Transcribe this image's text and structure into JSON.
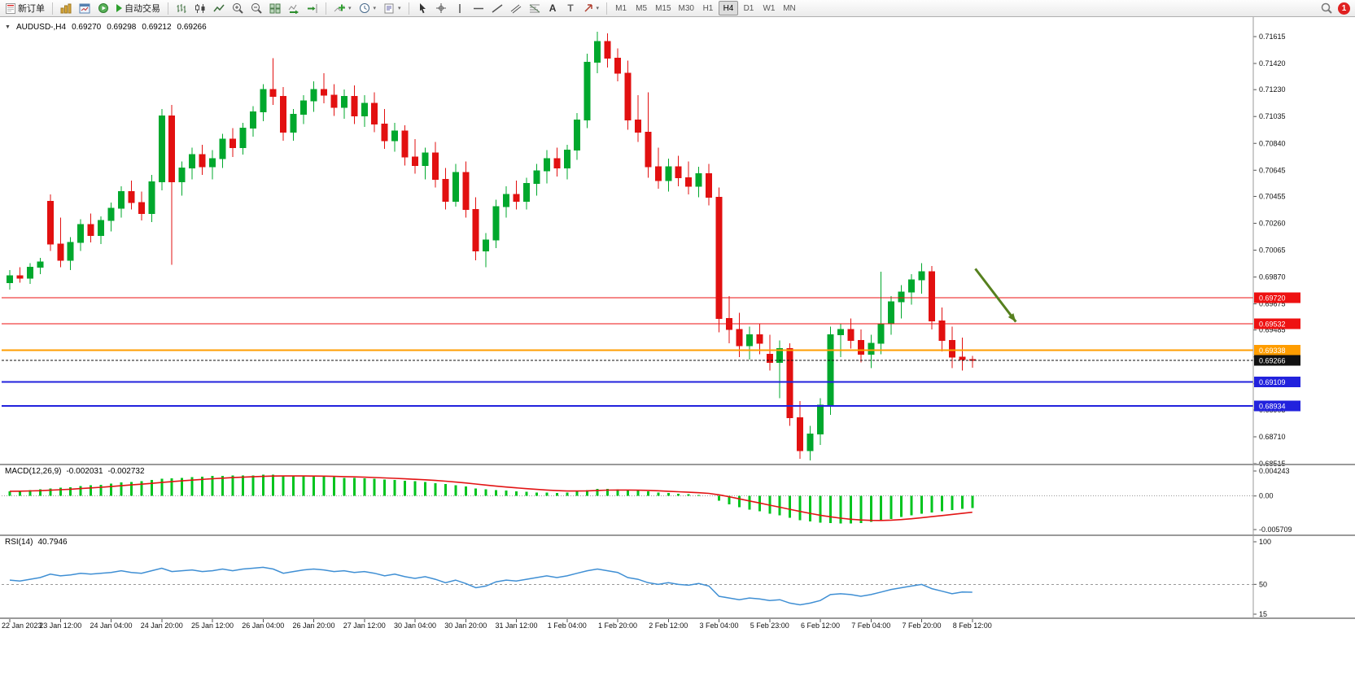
{
  "toolbar": {
    "new_order_label": "新订单",
    "autotrading_label": "自动交易",
    "timeframes": [
      "M1",
      "M5",
      "M15",
      "M30",
      "H1",
      "H4",
      "D1",
      "W1",
      "MN"
    ],
    "active_timeframe": "H4",
    "notification_count": "1",
    "icon_names": [
      "new-order",
      "chart-window",
      "market-watch",
      "autotrading-status",
      "autotrading-play",
      "bar-chart",
      "candlestick-chart",
      "line-chart",
      "zoom-in",
      "zoom-out",
      "tile-windows",
      "auto-scroll",
      "chart-shift",
      "indicators",
      "periods",
      "templates",
      "cursor",
      "crosshair",
      "vertical-line",
      "horizontal-line",
      "trendline",
      "equidistant-channel",
      "fibonacci",
      "text",
      "text-label",
      "arrows",
      "search",
      "notification"
    ]
  },
  "chart_header": {
    "symbol_period": "AUDUSD-,H4",
    "open": "0.69270",
    "high": "0.69298",
    "low": "0.69212",
    "close": "0.69266"
  },
  "chart_data": {
    "type": "candlestick",
    "title": "AUDUSD-,H4",
    "label_every_n_candles": 5,
    "time_labels": [
      "22 Jan 2023",
      "23 Jan 12:00",
      "24 Jan 04:00",
      "24 Jan 20:00",
      "25 Jan 12:00",
      "26 Jan 04:00",
      "26 Jan 20:00",
      "27 Jan 12:00",
      "30 Jan 04:00",
      "30 Jan 20:00",
      "31 Jan 12:00",
      "1 Feb 04:00",
      "1 Feb 20:00",
      "2 Feb 12:00",
      "3 Feb 04:00",
      "5 Feb 23:00",
      "6 Feb 12:00",
      "7 Feb 04:00",
      "7 Feb 20:00",
      "8 Feb 12:00"
    ],
    "price_axis_labels": [
      "0.71615",
      "0.71420",
      "0.71230",
      "0.71035",
      "0.70840",
      "0.70645",
      "0.70455",
      "0.70260",
      "0.70065",
      "0.69870",
      "0.69675",
      "0.69485",
      "0.69290",
      "0.69095",
      "0.68905",
      "0.68710",
      "0.68515"
    ],
    "candle_colors": {
      "up": "#00a82d",
      "down": "#e21010"
    },
    "ohlc": [
      [
        0.6983,
        0.6992,
        0.6978,
        0.6988
      ],
      [
        0.6988,
        0.6994,
        0.6983,
        0.6986
      ],
      [
        0.6986,
        0.6997,
        0.6982,
        0.6994
      ],
      [
        0.6994,
        0.7001,
        0.6989,
        0.6998
      ],
      [
        0.7042,
        0.7047,
        0.7006,
        0.7011
      ],
      [
        0.7011,
        0.703,
        0.6994,
        0.6999
      ],
      [
        0.6999,
        0.7016,
        0.6992,
        0.7012
      ],
      [
        0.7012,
        0.7029,
        0.7006,
        0.7025
      ],
      [
        0.7025,
        0.7033,
        0.7012,
        0.7017
      ],
      [
        0.7017,
        0.7031,
        0.7011,
        0.7028
      ],
      [
        0.7028,
        0.7041,
        0.702,
        0.7037
      ],
      [
        0.7037,
        0.7053,
        0.703,
        0.7049
      ],
      [
        0.7049,
        0.7057,
        0.7036,
        0.7041
      ],
      [
        0.7041,
        0.7049,
        0.7028,
        0.7033
      ],
      [
        0.7033,
        0.7061,
        0.7027,
        0.7056
      ],
      [
        0.7056,
        0.7109,
        0.705,
        0.7104
      ],
      [
        0.7104,
        0.7112,
        0.6996,
        0.7056
      ],
      [
        0.7056,
        0.7071,
        0.7046,
        0.7066
      ],
      [
        0.7066,
        0.7081,
        0.7058,
        0.7076
      ],
      [
        0.7076,
        0.7083,
        0.7061,
        0.7067
      ],
      [
        0.7067,
        0.7079,
        0.7058,
        0.7073
      ],
      [
        0.7073,
        0.7091,
        0.7066,
        0.7087
      ],
      [
        0.7087,
        0.7095,
        0.7074,
        0.7081
      ],
      [
        0.7081,
        0.7099,
        0.7076,
        0.7095
      ],
      [
        0.7095,
        0.7111,
        0.7089,
        0.7107
      ],
      [
        0.7107,
        0.7127,
        0.71,
        0.7123
      ],
      [
        0.7123,
        0.7146,
        0.7112,
        0.7118
      ],
      [
        0.7118,
        0.7125,
        0.7086,
        0.7092
      ],
      [
        0.7092,
        0.7109,
        0.7086,
        0.7105
      ],
      [
        0.7105,
        0.7119,
        0.7098,
        0.7115
      ],
      [
        0.7115,
        0.7129,
        0.7107,
        0.7123
      ],
      [
        0.7123,
        0.7135,
        0.7113,
        0.7119
      ],
      [
        0.7119,
        0.7127,
        0.7104,
        0.711
      ],
      [
        0.711,
        0.7123,
        0.7102,
        0.7118
      ],
      [
        0.7118,
        0.7126,
        0.7098,
        0.7104
      ],
      [
        0.7104,
        0.7119,
        0.7096,
        0.7113
      ],
      [
        0.7113,
        0.7121,
        0.7092,
        0.7098
      ],
      [
        0.7098,
        0.7109,
        0.708,
        0.7086
      ],
      [
        0.7086,
        0.7099,
        0.7078,
        0.7093
      ],
      [
        0.7093,
        0.7097,
        0.7068,
        0.7074
      ],
      [
        0.7074,
        0.7087,
        0.7062,
        0.7068
      ],
      [
        0.7068,
        0.7081,
        0.7058,
        0.7077
      ],
      [
        0.7077,
        0.7085,
        0.7052,
        0.7058
      ],
      [
        0.7058,
        0.7066,
        0.7036,
        0.7042
      ],
      [
        0.7042,
        0.7069,
        0.7038,
        0.7063
      ],
      [
        0.7063,
        0.7071,
        0.703,
        0.7036
      ],
      [
        0.7036,
        0.7045,
        0.6999,
        0.7006
      ],
      [
        0.7006,
        0.7019,
        0.6994,
        0.7014
      ],
      [
        0.7014,
        0.7043,
        0.7008,
        0.7038
      ],
      [
        0.7038,
        0.7053,
        0.703,
        0.7047
      ],
      [
        0.7047,
        0.7057,
        0.7036,
        0.7042
      ],
      [
        0.7042,
        0.7059,
        0.7036,
        0.7055
      ],
      [
        0.7055,
        0.7069,
        0.7046,
        0.7064
      ],
      [
        0.7064,
        0.7079,
        0.7055,
        0.7073
      ],
      [
        0.7073,
        0.7081,
        0.706,
        0.7066
      ],
      [
        0.7066,
        0.7083,
        0.7058,
        0.7079
      ],
      [
        0.7079,
        0.7106,
        0.7072,
        0.7101
      ],
      [
        0.7101,
        0.7149,
        0.7095,
        0.7143
      ],
      [
        0.7143,
        0.7165,
        0.7135,
        0.7158
      ],
      [
        0.7158,
        0.7164,
        0.7139,
        0.7146
      ],
      [
        0.7146,
        0.7153,
        0.7129,
        0.7135
      ],
      [
        0.7135,
        0.7144,
        0.7094,
        0.7101
      ],
      [
        0.7101,
        0.7119,
        0.7085,
        0.7092
      ],
      [
        0.7092,
        0.7121,
        0.7059,
        0.7067
      ],
      [
        0.7067,
        0.7081,
        0.7051,
        0.7057
      ],
      [
        0.7057,
        0.7073,
        0.7049,
        0.7067
      ],
      [
        0.7067,
        0.7075,
        0.7053,
        0.7059
      ],
      [
        0.7059,
        0.7071,
        0.7047,
        0.7053
      ],
      [
        0.7053,
        0.7067,
        0.7045,
        0.7062
      ],
      [
        0.7062,
        0.7069,
        0.7039,
        0.7045
      ],
      [
        0.7045,
        0.7052,
        0.6947,
        0.6957
      ],
      [
        0.6957,
        0.6973,
        0.6939,
        0.6949
      ],
      [
        0.6949,
        0.6961,
        0.6929,
        0.6937
      ],
      [
        0.6937,
        0.6951,
        0.6927,
        0.6945
      ],
      [
        0.6945,
        0.6953,
        0.6931,
        0.6939
      ],
      [
        0.6931,
        0.6945,
        0.6919,
        0.6925
      ],
      [
        0.6925,
        0.6941,
        0.6899,
        0.6935
      ],
      [
        0.6935,
        0.6939,
        0.6879,
        0.6885
      ],
      [
        0.6885,
        0.6897,
        0.6855,
        0.6861
      ],
      [
        0.6861,
        0.6879,
        0.6854,
        0.6873
      ],
      [
        0.6873,
        0.6899,
        0.6865,
        0.6894
      ],
      [
        0.6894,
        0.6951,
        0.6887,
        0.6945
      ],
      [
        0.6945,
        0.6953,
        0.6929,
        0.6949
      ],
      [
        0.6949,
        0.6957,
        0.6935,
        0.6941
      ],
      [
        0.6941,
        0.6949,
        0.6925,
        0.6931
      ],
      [
        0.6931,
        0.6945,
        0.6921,
        0.6939
      ],
      [
        0.6939,
        0.6991,
        0.6931,
        0.6953
      ],
      [
        0.6953,
        0.6973,
        0.6945,
        0.6969
      ],
      [
        0.6969,
        0.6981,
        0.6957,
        0.6976
      ],
      [
        0.6976,
        0.6989,
        0.6967,
        0.6985
      ],
      [
        0.6985,
        0.6997,
        0.6975,
        0.6991
      ],
      [
        0.6991,
        0.6995,
        0.6949,
        0.6955
      ],
      [
        0.6955,
        0.6965,
        0.6933,
        0.6941
      ],
      [
        0.6941,
        0.6951,
        0.6921,
        0.6929
      ],
      [
        0.6929,
        0.6943,
        0.6919,
        0.6927
      ],
      [
        0.6927,
        0.69298,
        0.69212,
        0.69266
      ]
    ],
    "levels": [
      {
        "price": 0.6972,
        "label": "0.69720",
        "color": "#ee1111",
        "width": 1
      },
      {
        "price": 0.69532,
        "label": "0.69532",
        "color": "#ee1111",
        "width": 1
      },
      {
        "price": 0.69338,
        "label": "0.69338",
        "color": "#ff9d00",
        "width": 2
      },
      {
        "price": 0.69109,
        "label": "0.69109",
        "color": "#2222dd",
        "width": 2
      },
      {
        "price": 0.68934,
        "label": "0.68934",
        "color": "#2222dd",
        "width": 2
      }
    ],
    "current_price": {
      "price": 0.69266,
      "label": "0.69266",
      "color": "#111111"
    },
    "arrow_annotation": {
      "from_index": 95.3,
      "from_price": 0.6993,
      "to_index": 99.3,
      "to_price": 0.69545,
      "color": "#56801e"
    },
    "macd": {
      "name": "MACD(12,26,9)",
      "value": "-0.002031",
      "signal_value": "-0.002732",
      "histogram_color": "#00c41e",
      "signal_color": "#e21414",
      "axis": [
        {
          "label": "0.004243",
          "value": 0.004243
        },
        {
          "label": "0.00",
          "value": 0
        },
        {
          "label": "-0.005709",
          "value": -0.005709
        }
      ],
      "histogram": [
        0.0008,
        0.0009,
        0.001,
        0.0011,
        0.0013,
        0.0014,
        0.0015,
        0.0017,
        0.0018,
        0.0019,
        0.0021,
        0.0023,
        0.0024,
        0.0025,
        0.0027,
        0.0029,
        0.003,
        0.0031,
        0.0032,
        0.0033,
        0.0034,
        0.0034,
        0.0035,
        0.0035,
        0.0035,
        0.0036,
        0.0036,
        0.0035,
        0.0034,
        0.0034,
        0.0033,
        0.0033,
        0.0032,
        0.0031,
        0.0031,
        0.003,
        0.0029,
        0.0028,
        0.0027,
        0.0026,
        0.0025,
        0.0024,
        0.0022,
        0.002,
        0.0018,
        0.0016,
        0.0013,
        0.0011,
        0.001,
        0.0009,
        0.0008,
        0.0007,
        0.0006,
        0.0006,
        0.0005,
        0.0006,
        0.0008,
        0.001,
        0.0012,
        0.0012,
        0.0011,
        0.001,
        0.0009,
        0.0008,
        0.0006,
        0.0005,
        0.0004,
        0.0003,
        0.0002,
        0.0,
        -0.0008,
        -0.0014,
        -0.0019,
        -0.0023,
        -0.0026,
        -0.003,
        -0.0033,
        -0.0037,
        -0.0041,
        -0.0043,
        -0.0045,
        -0.0046,
        -0.0047,
        -0.0047,
        -0.0046,
        -0.0044,
        -0.0042,
        -0.0039,
        -0.0036,
        -0.0033,
        -0.003,
        -0.0028,
        -0.0026,
        -0.0024,
        -0.0022,
        -0.002031
      ]
    },
    "rsi": {
      "name": "RSI(14)",
      "value": "40.7946",
      "line_color": "#3f8fd4",
      "mid_level": 50,
      "axis": [
        {
          "label": "100",
          "value": 100
        },
        {
          "label": "50",
          "value": 50
        },
        {
          "label": "15",
          "value": 15
        }
      ],
      "values": [
        55,
        54,
        56,
        58,
        62,
        60,
        61,
        63,
        62,
        63,
        64,
        66,
        64,
        63,
        66,
        69,
        65,
        66,
        67,
        65,
        66,
        68,
        66,
        68,
        69,
        70,
        68,
        63,
        65,
        67,
        68,
        67,
        65,
        66,
        64,
        65,
        63,
        60,
        62,
        59,
        57,
        59,
        56,
        52,
        55,
        51,
        46,
        48,
        53,
        55,
        54,
        56,
        58,
        60,
        58,
        60,
        63,
        66,
        68,
        66,
        64,
        58,
        56,
        52,
        50,
        52,
        50,
        49,
        51,
        48,
        36,
        34,
        32,
        34,
        33,
        31,
        32,
        28,
        26,
        28,
        31,
        38,
        39,
        38,
        36,
        38,
        41,
        44,
        46,
        48,
        50,
        45,
        42,
        39,
        41,
        40.79
      ]
    }
  }
}
